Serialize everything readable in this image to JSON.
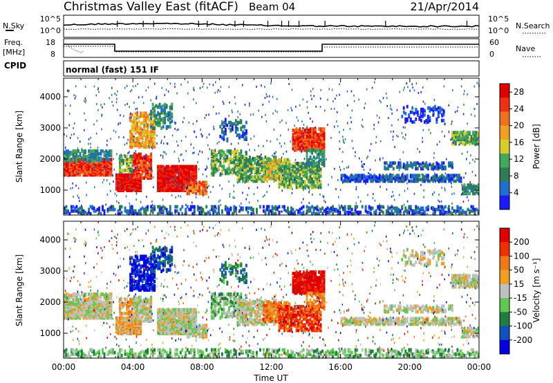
{
  "header": {
    "station": "Christmas Valley East (fitACF)",
    "beam": "Beam 04",
    "date": "21/Apr/2014"
  },
  "top_panel": {
    "left_label": "N.Sky",
    "right_label": "N.Search",
    "left_ticks": [
      "10^5",
      "10^0"
    ],
    "right_ticks": [
      "10^5",
      "10^0"
    ]
  },
  "freq_panel": {
    "left_label_1": "Freq.",
    "left_label_2": "[MHz]",
    "right_label": "Nave",
    "left_ticks": [
      "18",
      "8"
    ],
    "right_ticks": [
      "60",
      "0"
    ]
  },
  "cpid_panel": {
    "label": "CPID",
    "mode": "normal (fast) 151 IF"
  },
  "colors": {
    "power": [
      "#1a1aff",
      "#1f6fd0",
      "#2e7d55",
      "#44a85a",
      "#d8cc2a",
      "#f0a020",
      "#f07020",
      "#f03010",
      "#e00000"
    ],
    "velocity": [
      "#0000e0",
      "#1050c0",
      "#1d7f3e",
      "#5ec850",
      "#c0c0c0",
      "#f0a020",
      "#f07818",
      "#f03000",
      "#e00000"
    ]
  },
  "chart_data": [
    {
      "type": "heatmap",
      "title": "Power",
      "ylabel": "Slant Range [km]",
      "xlabel": "",
      "x_ticks": [
        "00:00",
        "04:00",
        "08:00",
        "12:00",
        "16:00",
        "20:00",
        "00:00"
      ],
      "y_ticks": [
        1000,
        2000,
        3000,
        4000
      ],
      "ylim": [
        200,
        4600
      ],
      "xlim_hours": [
        0,
        24
      ],
      "colorbar_label": "Power [dB]",
      "colorbar_ticks": [
        4,
        8,
        12,
        16,
        20,
        24,
        28
      ],
      "colorbar_range": [
        0,
        30
      ]
    },
    {
      "type": "heatmap",
      "title": "Velocity",
      "ylabel": "Slant Range [km]",
      "xlabel": "Time UT",
      "x_ticks": [
        "00:00",
        "04:00",
        "08:00",
        "12:00",
        "16:00",
        "20:00",
        "00:00"
      ],
      "y_ticks": [
        1000,
        2000,
        3000,
        4000
      ],
      "ylim": [
        200,
        4600
      ],
      "xlim_hours": [
        0,
        24
      ],
      "colorbar_label": "Velocity [m s⁻¹]",
      "colorbar_ticks": [
        200,
        100,
        50,
        15,
        -15,
        -50,
        -100,
        -200
      ]
    }
  ]
}
